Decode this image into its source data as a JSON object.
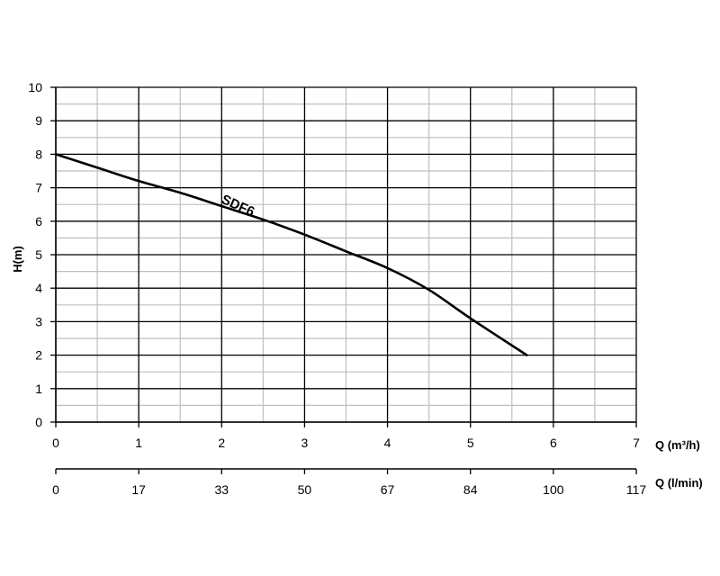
{
  "chart_data": {
    "type": "line",
    "title": "",
    "ylabel": "H(m)",
    "xlabel": "Q (m³/h)",
    "xlabel2": "Q (l/min)",
    "xlim": [
      0,
      7
    ],
    "ylim": [
      0,
      10
    ],
    "x_ticks": [
      "0",
      "1",
      "2",
      "3",
      "4",
      "5",
      "6",
      "7"
    ],
    "x2_ticks": [
      "0",
      "17",
      "33",
      "50",
      "67",
      "84",
      "100",
      "117"
    ],
    "y_ticks": [
      "0",
      "1",
      "2",
      "3",
      "4",
      "5",
      "6",
      "7",
      "8",
      "9",
      "10"
    ],
    "grid": true,
    "series": [
      {
        "name": "SDF6",
        "color": "#000000",
        "x": [
          0,
          0.5,
          1,
          1.5,
          2,
          2.5,
          3,
          3.5,
          4,
          4.5,
          5,
          5.68
        ],
        "y": [
          8.0,
          7.6,
          7.2,
          6.85,
          6.45,
          6.05,
          5.6,
          5.1,
          4.6,
          3.95,
          3.1,
          2.0
        ]
      }
    ]
  }
}
